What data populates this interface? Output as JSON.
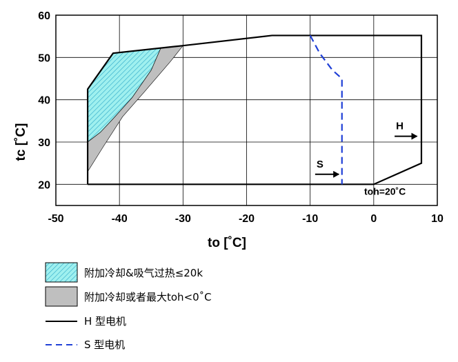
{
  "chart_data": {
    "type": "line",
    "xlabel": "to [˚C]",
    "ylabel": "tc [˚C]",
    "xlim": [
      -50,
      10
    ],
    "ylim": [
      15,
      60
    ],
    "xticks": [
      "-50",
      "-40",
      "-30",
      "-20",
      "-10",
      "0",
      "10"
    ],
    "yticks": [
      "20",
      "30",
      "40",
      "50",
      "60"
    ],
    "grid": true,
    "legend_position": "below",
    "series": [
      {
        "name": "H 型电机",
        "style": "solid",
        "color": "#000000",
        "points": [
          [
            -45,
            20
          ],
          [
            -45,
            42.5
          ],
          [
            -41,
            51
          ],
          [
            -30,
            52.8
          ],
          [
            -16,
            55.2
          ],
          [
            7.5,
            55.2
          ],
          [
            7.5,
            25
          ],
          [
            0,
            20
          ],
          [
            -45,
            20
          ]
        ]
      },
      {
        "name": "S 型电机",
        "style": "dashed",
        "color": "#1f3fd6",
        "points": [
          [
            -10,
            55.2
          ],
          [
            -8.5,
            51
          ],
          [
            -6.5,
            47
          ],
          [
            -5,
            45
          ],
          [
            -5,
            20
          ]
        ]
      }
    ],
    "areas": [
      {
        "name": "附加冷却&吸气过热≤20k",
        "pattern": "hatch",
        "color": "#9ff0ef",
        "points": [
          [
            -45,
            30
          ],
          [
            -45,
            42.5
          ],
          [
            -41,
            51
          ],
          [
            -33.5,
            52.2
          ],
          [
            -35,
            47
          ],
          [
            -38,
            40.5
          ],
          [
            -41,
            35.5
          ],
          [
            -43,
            32.3
          ]
        ]
      },
      {
        "name": "附加冷却或者最大toh<0˚C",
        "pattern": "solid",
        "color": "#bfbfbf",
        "points": [
          [
            -45,
            23
          ],
          [
            -45,
            30
          ],
          [
            -43,
            32.3
          ],
          [
            -41,
            35.5
          ],
          [
            -38,
            40.5
          ],
          [
            -35,
            47
          ],
          [
            -33.5,
            52.2
          ],
          [
            -30,
            52.8
          ],
          [
            -32,
            49
          ],
          [
            -36,
            42
          ],
          [
            -39.5,
            36
          ],
          [
            -42.5,
            29
          ]
        ]
      }
    ],
    "annotations": [
      {
        "text": "H",
        "x": 3.5,
        "y": 33,
        "arrow_to": [
          6.8,
          32
        ]
      },
      {
        "text": "S",
        "x": -9,
        "y": 24,
        "arrow_to": [
          -5.5,
          22
        ]
      },
      {
        "text": "toh=20˚C",
        "x": -1.5,
        "y": 17.5
      }
    ]
  },
  "legend": {
    "items": [
      {
        "label": "附加冷却&吸气过热≤20k",
        "kind": "hatch"
      },
      {
        "label": "附加冷却或者最大toh<0˚C",
        "kind": "gray"
      },
      {
        "label": "H 型电机",
        "kind": "solid-line"
      },
      {
        "label": "S 型电机",
        "kind": "dashed-line"
      }
    ]
  },
  "colors": {
    "hatch_fill": "#9ff0ef",
    "hatch_line": "#2aa7c7",
    "gray_fill": "#bfbfbf",
    "s_line": "#1f3fd6"
  }
}
